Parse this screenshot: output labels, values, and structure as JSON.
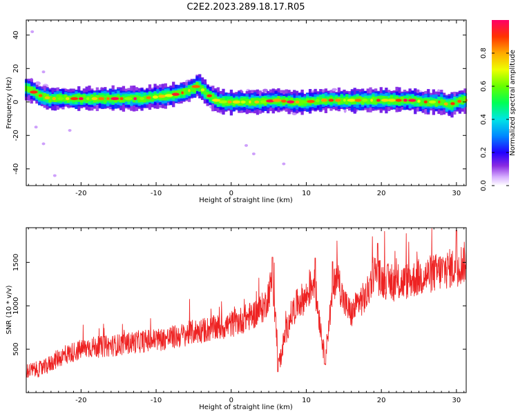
{
  "figure_title": "C2E2.2023.289.18.17.R05",
  "chart_data": [
    {
      "type": "heatmap",
      "name": "spectrogram",
      "xlabel": "Height of straight line (km)",
      "ylabel": "Frequency (Hz)",
      "xlim": [
        -27.3,
        31.3
      ],
      "ylim": [
        -50,
        49
      ],
      "xticks": [
        -20,
        -10,
        0,
        10,
        20,
        30
      ],
      "yticks": [
        -40,
        -20,
        0,
        20,
        40
      ],
      "colormap": "rainbow (violet to red)",
      "colorbar": {
        "label": "Normalized spectral amplitude",
        "range": [
          0.0,
          1.0
        ],
        "ticks": [
          "0.0",
          "0.2",
          "0.4",
          "0.6",
          "0.8"
        ]
      },
      "ridge": {
        "description": "dominant frequency band, width ~5 Hz",
        "x": [
          -27,
          -26,
          -25,
          -24,
          -22,
          -20,
          -18,
          -16,
          -14,
          -12,
          -10,
          -8,
          -7,
          -6,
          -5,
          -4.5,
          -4,
          -3,
          -2,
          -1,
          0,
          2,
          4,
          6,
          8,
          10,
          12,
          14,
          16,
          18,
          20,
          22,
          24,
          26,
          28,
          29,
          30,
          31
        ],
        "freq": [
          8,
          5,
          3,
          2,
          2,
          2,
          2,
          2,
          2,
          2,
          3,
          4,
          5,
          6,
          8,
          10,
          8,
          4,
          1,
          0,
          0,
          0,
          0,
          1,
          0,
          0,
          1,
          1,
          1,
          1,
          1,
          1,
          1,
          0,
          0,
          -2,
          0,
          1
        ]
      },
      "grid": false
    },
    {
      "type": "line",
      "name": "snr",
      "xlabel": "Height of straight line (km)",
      "ylabel": "SNR (10 * v/v)",
      "xlim": [
        -27.3,
        31.3
      ],
      "ylim": [
        0,
        1900
      ],
      "xticks": [
        -20,
        -10,
        0,
        10,
        20,
        30
      ],
      "yticks": [
        500,
        1000,
        1500
      ],
      "color": "#ee2222",
      "grid": false,
      "envelope": {
        "description": "approximate central trend of the noisy SNR trace",
        "x": [
          -27,
          -25,
          -23,
          -21,
          -19,
          -17,
          -15,
          -13,
          -11,
          -9,
          -7,
          -5,
          -3,
          -1,
          1,
          3,
          4.5,
          5.5,
          6,
          6.5,
          7,
          8,
          9,
          10,
          11,
          12,
          12.5,
          13,
          14,
          15,
          16,
          17,
          18,
          19,
          20,
          22,
          24,
          26,
          28,
          30,
          31
        ],
        "y": [
          250,
          280,
          400,
          470,
          520,
          530,
          550,
          580,
          600,
          620,
          650,
          700,
          730,
          760,
          820,
          900,
          1000,
          1300,
          700,
          350,
          600,
          900,
          1050,
          1100,
          1300,
          700,
          350,
          800,
          1400,
          1050,
          900,
          1050,
          1100,
          1400,
          1300,
          1250,
          1300,
          1350,
          1400,
          1450,
          1500
        ]
      },
      "peaks": [
        {
          "x": 5.5,
          "y": 1560
        },
        {
          "x": 11.2,
          "y": 1550
        },
        {
          "x": 13.5,
          "y": 1510
        },
        {
          "x": 19.5,
          "y": 1720
        },
        {
          "x": 30,
          "y": 1870
        }
      ],
      "troughs": [
        {
          "x": 6.2,
          "y": 240
        },
        {
          "x": 12.5,
          "y": 330
        }
      ]
    }
  ]
}
